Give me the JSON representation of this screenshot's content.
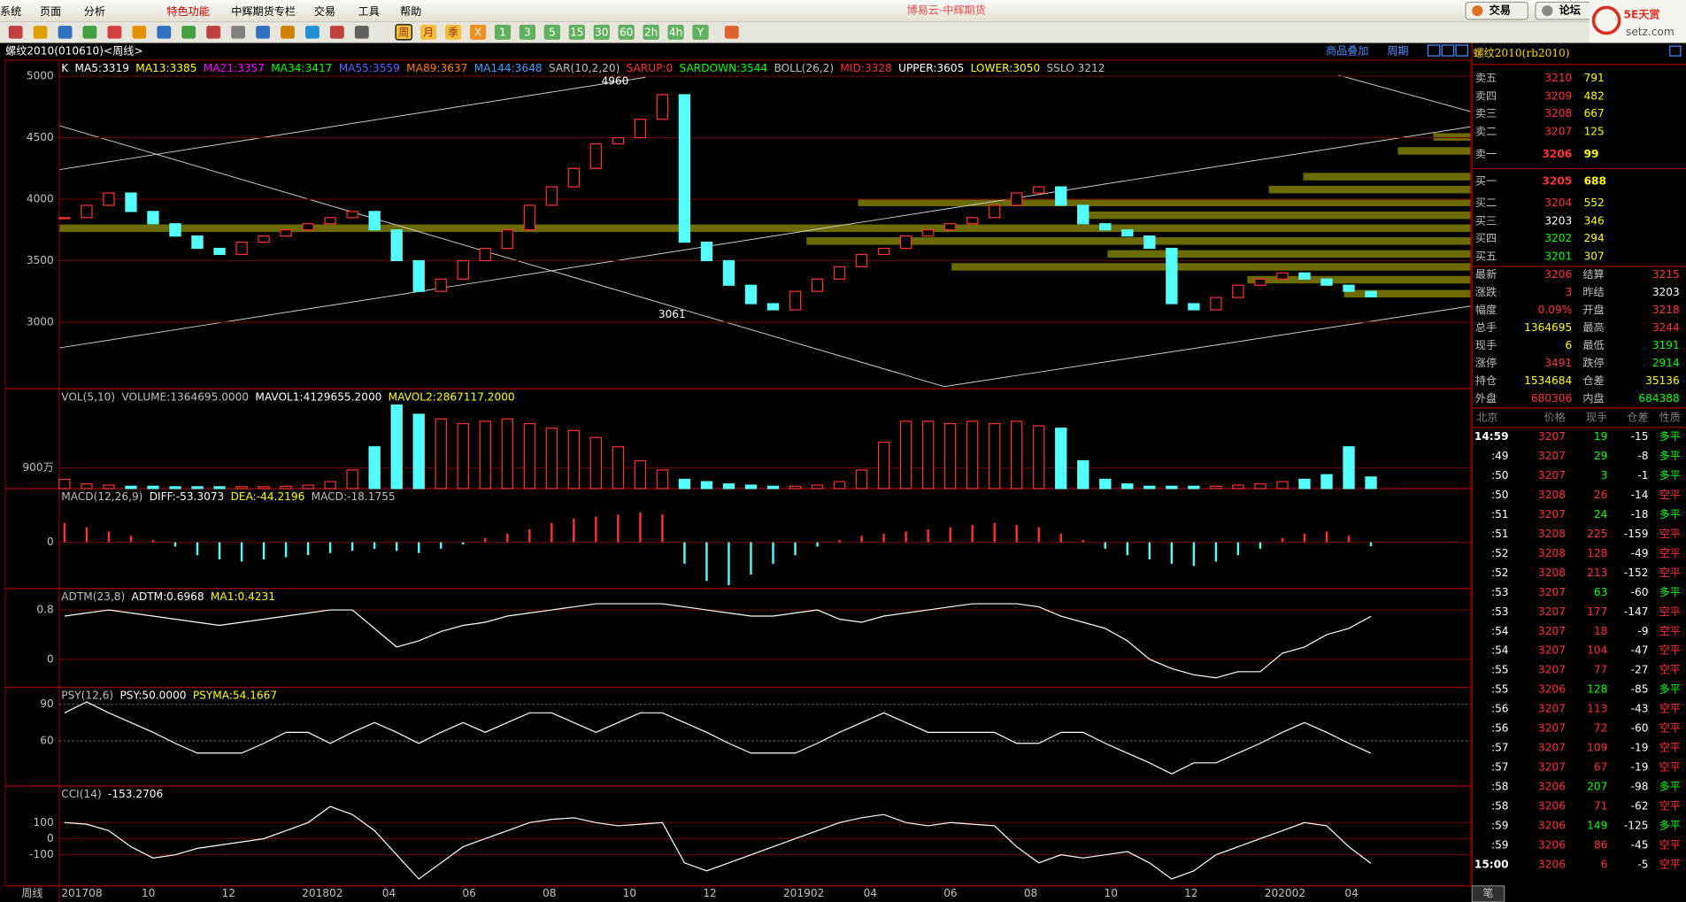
{
  "menu": [
    "系统",
    "页面",
    "分析",
    "特色功能",
    "中辉期货专栏",
    "交易",
    "工具",
    "帮助"
  ],
  "app_title": "博易云-中辉期货",
  "top_buttons": [
    "交易",
    "论坛"
  ],
  "logo": {
    "name": "5E天赏",
    "site": "setz.com"
  },
  "toolbar": [
    "周",
    "月",
    "季",
    "X",
    "1",
    "3",
    "5",
    "15",
    "30",
    "60",
    "2h",
    "4h",
    "Y"
  ],
  "chart_title": "螺纹2010(010610)<周线>",
  "chart_links": [
    "商品叠加",
    "周期"
  ],
  "x_axis": {
    "label": "周线",
    "ticks": [
      "201708",
      "10",
      "12",
      "201802",
      "04",
      "06",
      "08",
      "10",
      "12",
      "201902",
      "04",
      "06",
      "08",
      "10",
      "12",
      "202002",
      "04"
    ]
  },
  "panels": [
    {
      "type": "candlestick",
      "header": [
        {
          "text": "K",
          "color": "#ffffff"
        },
        {
          "text": "MA5:3319",
          "color": "#ffffff"
        },
        {
          "text": "MA13:3385",
          "color": "#ffff00"
        },
        {
          "text": "MA21:3357",
          "color": "#ff00ff"
        },
        {
          "text": "MA34:3417",
          "color": "#00ff00"
        },
        {
          "text": "MA55:3559",
          "color": "#6060ff"
        },
        {
          "text": "MA89:3637",
          "color": "#ff8000"
        },
        {
          "text": "MA144:3648",
          "color": "#40a0ff"
        },
        {
          "text": "SAR(10,2,20)",
          "color": "#c0c0c0"
        },
        {
          "text": "SARUP:0",
          "color": "#ff3232"
        },
        {
          "text": "SARDOWN:3544",
          "color": "#00ff00"
        },
        {
          "text": "BOLL(26,2)",
          "color": "#c0c0c0"
        },
        {
          "text": "MID:3328",
          "color": "#ff3232"
        },
        {
          "text": "UPPER:3605",
          "color": "#ffffff"
        },
        {
          "text": "LOWER:3050",
          "color": "#ffff00"
        },
        {
          "text": "SSLO 3212",
          "color": "#c0c0c0"
        }
      ],
      "close": [
        3850,
        3950,
        4050,
        3900,
        3800,
        3700,
        3600,
        3550,
        3650,
        3700,
        3750,
        3800,
        3850,
        3900,
        3750,
        3500,
        3250,
        3350,
        3500,
        3600,
        3750,
        3950,
        4100,
        4250,
        4450,
        4500,
        4650,
        4850,
        3650,
        3500,
        3300,
        3150,
        3100,
        3250,
        3350,
        3450,
        3550,
        3600,
        3700,
        3750,
        3800,
        3850,
        3950,
        4050,
        4100,
        3950,
        3800,
        3750,
        3700,
        3600,
        3150,
        3100,
        3200,
        3300,
        3350,
        3400,
        3350,
        3300,
        3250,
        3206
      ],
      "ylim": [
        2458,
        5131
      ],
      "yticks": [
        3000,
        3500,
        4000,
        4500,
        5000
      ],
      "up_color": "#ff3232",
      "down_color": "#54fcfc",
      "annotations": [
        "4960",
        "3061"
      ]
    },
    {
      "type": "bar",
      "header": [
        {
          "text": "VOL(5,10)",
          "color": "#c0c0c0"
        },
        {
          "text": "VOLUME:1364695.0000",
          "color": "#c0c0c0"
        },
        {
          "text": "MAVOL1:4129655.2000",
          "color": "#ffffff"
        },
        {
          "text": "MAVOL2:2867117.2000",
          "color": "#ffff00"
        }
      ],
      "values": [
        400,
        200,
        150,
        100,
        100,
        80,
        80,
        80,
        80,
        80,
        100,
        150,
        300,
        800,
        1800,
        3600,
        3200,
        3000,
        2800,
        2900,
        3000,
        2800,
        2600,
        2500,
        2200,
        1800,
        1200,
        800,
        400,
        300,
        200,
        150,
        100,
        100,
        150,
        300,
        800,
        2000,
        2900,
        2900,
        2800,
        2900,
        2800,
        2900,
        2700,
        2600,
        1200,
        400,
        200,
        100,
        100,
        100,
        100,
        150,
        200,
        300,
        400,
        600,
        1800,
        500
      ],
      "ylim": [
        0,
        4300
      ],
      "yticks": [
        {
          "value": 900,
          "label": "900万"
        }
      ]
    },
    {
      "type": "macd",
      "header": [
        {
          "text": "MACD(12,26,9)",
          "color": "#c0c0c0"
        },
        {
          "text": "DIFF:-53.3073",
          "color": "#ffffff"
        },
        {
          "text": "DEA:-44.2196",
          "color": "#ffff00"
        },
        {
          "text": "MACD:-18.1755",
          "color": "#c0c0c0"
        }
      ],
      "values": [
        90,
        70,
        50,
        30,
        10,
        -20,
        -60,
        -80,
        -90,
        -80,
        -70,
        -60,
        -50,
        -40,
        -30,
        -40,
        -50,
        -30,
        -10,
        20,
        40,
        60,
        90,
        110,
        120,
        130,
        140,
        130,
        -100,
        -180,
        -200,
        -150,
        -100,
        -60,
        -20,
        10,
        30,
        40,
        50,
        60,
        70,
        80,
        90,
        80,
        70,
        40,
        10,
        -30,
        -60,
        -80,
        -100,
        -110,
        -90,
        -60,
        -30,
        20,
        40,
        50,
        30,
        -18
      ],
      "ylim": [
        -215,
        250
      ],
      "yticks": [
        0
      ]
    },
    {
      "type": "line",
      "header": [
        {
          "text": "ADTM(23,8)",
          "color": "#c0c0c0"
        },
        {
          "text": "ADTM:0.6968",
          "color": "#ffffff"
        },
        {
          "text": "MA1:0.4231",
          "color": "#ffff00"
        }
      ],
      "values": [
        0.7,
        0.75,
        0.8,
        0.75,
        0.7,
        0.65,
        0.6,
        0.55,
        0.6,
        0.65,
        0.7,
        0.75,
        0.8,
        0.8,
        0.5,
        0.2,
        0.3,
        0.45,
        0.55,
        0.6,
        0.7,
        0.75,
        0.8,
        0.85,
        0.9,
        0.9,
        0.9,
        0.9,
        0.85,
        0.8,
        0.75,
        0.7,
        0.7,
        0.75,
        0.8,
        0.65,
        0.6,
        0.7,
        0.75,
        0.8,
        0.85,
        0.9,
        0.9,
        0.9,
        0.85,
        0.7,
        0.6,
        0.5,
        0.3,
        0,
        -0.15,
        -0.25,
        -0.3,
        -0.2,
        -0.2,
        0.1,
        0.2,
        0.4,
        0.5,
        0.6968
      ],
      "ylim": [
        -0.452,
        1.148
      ],
      "yticks": [
        0,
        0.8
      ],
      "color": "#ffffff"
    },
    {
      "type": "line",
      "header": [
        {
          "text": "PSY(12,6)",
          "color": "#c0c0c0"
        },
        {
          "text": "PSY:50.0000",
          "color": "#ffffff"
        },
        {
          "text": "PSYMA:54.1667",
          "color": "#ffff00"
        }
      ],
      "values": [
        83,
        92,
        83,
        75,
        67,
        58,
        50,
        50,
        50,
        58,
        67,
        67,
        58,
        67,
        75,
        67,
        58,
        67,
        75,
        67,
        75,
        83,
        83,
        75,
        67,
        75,
        83,
        83,
        75,
        67,
        58,
        50,
        50,
        50,
        58,
        67,
        75,
        83,
        75,
        67,
        67,
        67,
        67,
        58,
        58,
        67,
        67,
        58,
        50,
        42,
        33,
        42,
        42,
        50,
        58,
        67,
        75,
        67,
        58,
        50
      ],
      "ylim": [
        23,
        104
      ],
      "yticks": [
        60,
        90
      ],
      "color": "#ffffff"
    },
    {
      "type": "line",
      "header": [
        {
          "text": "CCI(14)",
          "color": "#c0c0c0"
        },
        {
          "text": "-153.2706",
          "color": "#ffffff"
        }
      ],
      "values": [
        100,
        90,
        50,
        -50,
        -120,
        -100,
        -60,
        -40,
        -20,
        0,
        50,
        100,
        200,
        150,
        50,
        -100,
        -250,
        -150,
        -50,
        0,
        50,
        100,
        120,
        130,
        100,
        80,
        90,
        100,
        -150,
        -200,
        -150,
        -100,
        -50,
        0,
        50,
        100,
        130,
        150,
        100,
        80,
        100,
        90,
        80,
        -50,
        -150,
        -100,
        -120,
        -100,
        -80,
        -150,
        -250,
        -200,
        -100,
        -50,
        0,
        50,
        100,
        80,
        -50,
        -153.2706
      ],
      "ylim": [
        -293,
        327
      ],
      "yticks": [
        -100,
        0,
        100
      ],
      "color": "#ffffff"
    }
  ],
  "quote": {
    "title": "螺纹2010(rb2010)",
    "asks": [
      [
        "卖五",
        "3210",
        "791"
      ],
      [
        "卖四",
        "3209",
        "482"
      ],
      [
        "卖三",
        "3208",
        "667"
      ],
      [
        "卖二",
        "3207",
        "125"
      ],
      [
        "卖一",
        "3206",
        "99"
      ]
    ],
    "bids": [
      [
        "买一",
        "3205",
        "688"
      ],
      [
        "买二",
        "3204",
        "552"
      ],
      [
        "买三",
        "3203",
        "346"
      ],
      [
        "买四",
        "3202",
        "294"
      ],
      [
        "买五",
        "3201",
        "307"
      ]
    ],
    "stats": [
      [
        "最新",
        "3206",
        "结算",
        "3215"
      ],
      [
        "涨跌",
        "3",
        "昨结",
        "3203"
      ],
      [
        "幅度",
        "0.09%",
        "开盘",
        "3218"
      ],
      [
        "总手",
        "1364695",
        "最高",
        "3244"
      ],
      [
        "现手",
        "6",
        "最低",
        "3191"
      ],
      [
        "涨停",
        "3491",
        "跌停",
        "2914"
      ],
      [
        "持仓",
        "1534684",
        "仓差",
        "35136"
      ],
      [
        "外盘",
        "680306",
        "内盘",
        "684388"
      ]
    ],
    "ticks_header": [
      "北京",
      "价格",
      "现手",
      "仓差",
      "性质"
    ],
    "ticks": [
      [
        "14:59",
        "3207",
        "19",
        "-15",
        "多平"
      ],
      [
        ":49",
        "3207",
        "29",
        "-8",
        "多平"
      ],
      [
        ":50",
        "3207",
        "3",
        "-1",
        "多平"
      ],
      [
        ":50",
        "3208",
        "26",
        "-14",
        "空平"
      ],
      [
        ":51",
        "3207",
        "24",
        "-18",
        "多平"
      ],
      [
        ":51",
        "3208",
        "225",
        "-159",
        "空平"
      ],
      [
        ":52",
        "3208",
        "128",
        "-49",
        "空平"
      ],
      [
        ":52",
        "3208",
        "213",
        "-152",
        "空平"
      ],
      [
        ":53",
        "3207",
        "63",
        "-60",
        "多平"
      ],
      [
        ":53",
        "3207",
        "177",
        "-147",
        "空平"
      ],
      [
        ":54",
        "3207",
        "18",
        "-9",
        "空平"
      ],
      [
        ":54",
        "3207",
        "104",
        "-47",
        "空平"
      ],
      [
        ":55",
        "3207",
        "77",
        "-27",
        "空平"
      ],
      [
        ":55",
        "3206",
        "128",
        "-85",
        "多平"
      ],
      [
        ":56",
        "3207",
        "113",
        "-43",
        "空平"
      ],
      [
        ":56",
        "3207",
        "72",
        "-60",
        "空平"
      ],
      [
        ":57",
        "3207",
        "109",
        "-19",
        "空平"
      ],
      [
        ":57",
        "3207",
        "67",
        "-19",
        "空平"
      ],
      [
        ":58",
        "3206",
        "207",
        "-98",
        "多平"
      ],
      [
        ":58",
        "3206",
        "71",
        "-62",
        "空平"
      ],
      [
        ":59",
        "3206",
        "149",
        "-125",
        "多平"
      ],
      [
        ":59",
        "3206",
        "86",
        "-45",
        "空平"
      ],
      [
        "15:00",
        "3206",
        "6",
        "-5",
        "空平"
      ]
    ],
    "tab": "笔"
  }
}
